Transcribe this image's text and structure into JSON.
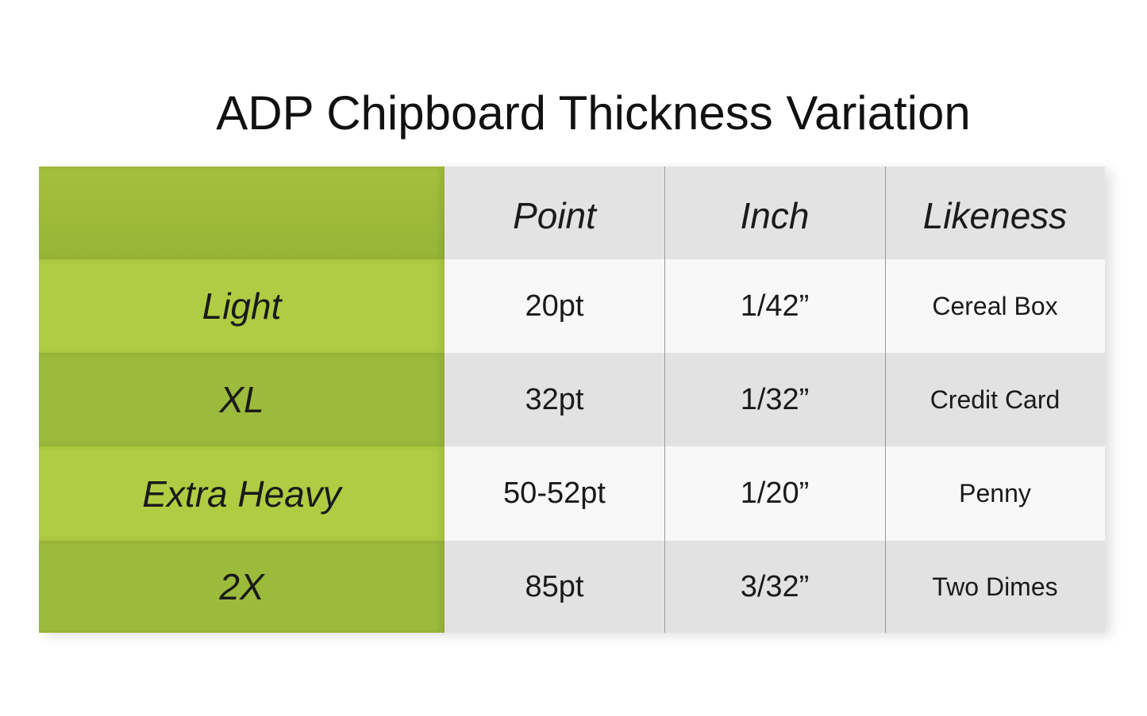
{
  "title": "ADP Chipboard Thickness Variation",
  "table": {
    "columns": [
      "Point",
      "Inch",
      "Likeness"
    ],
    "rows": [
      [
        "Light",
        "20pt",
        "1/42”",
        "Cereal Box"
      ],
      [
        "XL",
        "32pt",
        "1/32”",
        "Credit Card"
      ],
      [
        "Extra Heavy",
        "50-52pt",
        "1/20”",
        "Penny"
      ],
      [
        "2X",
        "85pt",
        "3/32”",
        "Two Dimes"
      ]
    ]
  }
}
